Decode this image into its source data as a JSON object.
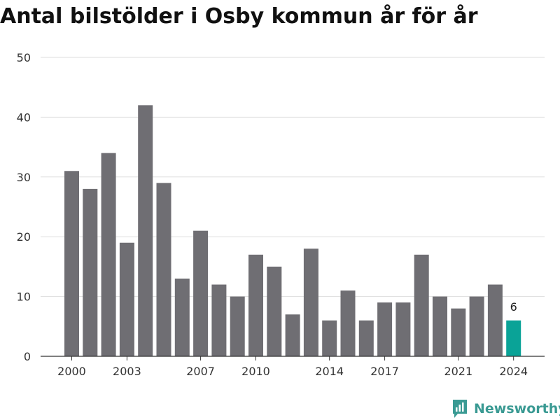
{
  "title": "Antal bilstölder i Osby kommun år för år",
  "brand": {
    "name": "Newsworthy",
    "icon": "newsworthy-logo-icon"
  },
  "colors": {
    "bar": "#6f6e73",
    "highlight": "#0aa397",
    "grid": "#dddddd",
    "axis": "#333333"
  },
  "chart_data": {
    "type": "bar",
    "title": "Antal bilstölder i Osby kommun år för år",
    "xlabel": "",
    "ylabel": "",
    "categories": [
      "2000",
      "2001",
      "2002",
      "2003",
      "2004",
      "2005",
      "2006",
      "2007",
      "2008",
      "2009",
      "2010",
      "2011",
      "2012",
      "2013",
      "2014",
      "2015",
      "2016",
      "2017",
      "2018",
      "2019",
      "2020",
      "2021",
      "2022",
      "2023",
      "2024"
    ],
    "values": [
      31,
      28,
      34,
      19,
      42,
      29,
      13,
      21,
      12,
      10,
      17,
      15,
      7,
      18,
      6,
      11,
      6,
      9,
      9,
      17,
      10,
      8,
      10,
      12,
      6
    ],
    "ylim": [
      0,
      50
    ],
    "yticks": [
      "0",
      "10",
      "20",
      "30",
      "40",
      "50"
    ],
    "xtick_labels": [
      "2000",
      "2003",
      "2007",
      "2010",
      "2014",
      "2017",
      "2021",
      "2024"
    ],
    "highlight_category": "2024",
    "data_labels": [
      {
        "category": "2024",
        "text": "6"
      }
    ],
    "grid": "horizontal"
  }
}
